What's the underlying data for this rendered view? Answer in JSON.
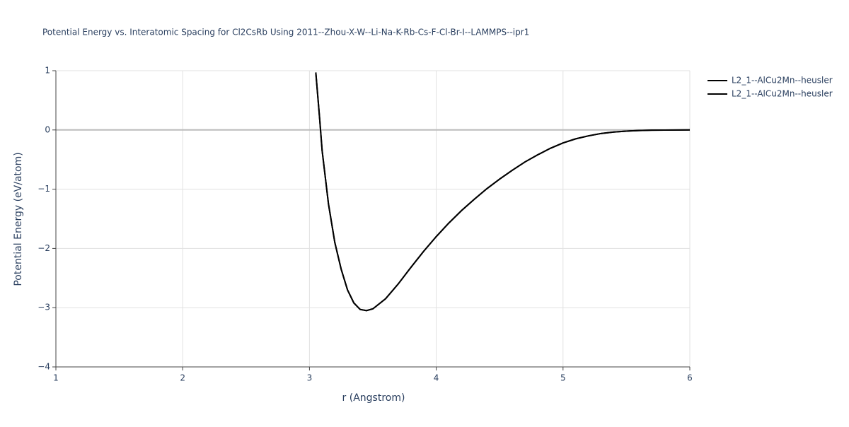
{
  "chart_data": {
    "type": "line",
    "title": "Potential Energy vs. Interatomic Spacing for Cl2CsRb Using 2011--Zhou-X-W--Li-Na-K-Rb-Cs-F-Cl-Br-I--LAMMPS--ipr1",
    "x_label": "r (Angstrom)",
    "y_label": "Potential Energy (eV/atom)",
    "x": [
      3.05,
      3.08,
      3.1,
      3.15,
      3.2,
      3.25,
      3.3,
      3.35,
      3.4,
      3.45,
      3.5,
      3.6,
      3.7,
      3.8,
      3.9,
      4.0,
      4.1,
      4.2,
      4.3,
      4.4,
      4.5,
      4.6,
      4.7,
      4.8,
      4.9,
      5.0,
      5.1,
      5.2,
      5.3,
      5.4,
      5.5,
      5.6,
      5.7,
      5.8,
      5.9,
      6.0
    ],
    "series": [
      {
        "name": "L2_1--AlCu2Mn--heusler",
        "color": "#000000",
        "values": [
          0.97,
          0.2,
          -0.35,
          -1.25,
          -1.9,
          -2.35,
          -2.7,
          -2.92,
          -3.03,
          -3.05,
          -3.02,
          -2.85,
          -2.6,
          -2.32,
          -2.05,
          -1.8,
          -1.57,
          -1.36,
          -1.17,
          -0.99,
          -0.83,
          -0.68,
          -0.54,
          -0.42,
          -0.31,
          -0.22,
          -0.15,
          -0.1,
          -0.06,
          -0.035,
          -0.02,
          -0.01,
          -0.004,
          -0.002,
          -0.001,
          0
        ]
      },
      {
        "name": "L2_1--AlCu2Mn--heusler",
        "color": "#000000",
        "values": [
          0.97,
          0.2,
          -0.35,
          -1.25,
          -1.9,
          -2.35,
          -2.7,
          -2.92,
          -3.03,
          -3.05,
          -3.02,
          -2.85,
          -2.6,
          -2.32,
          -2.05,
          -1.8,
          -1.57,
          -1.36,
          -1.17,
          -0.99,
          -0.83,
          -0.68,
          -0.54,
          -0.42,
          -0.31,
          -0.22,
          -0.15,
          -0.1,
          -0.06,
          -0.035,
          -0.02,
          -0.01,
          -0.004,
          -0.002,
          -0.001,
          0
        ]
      }
    ],
    "xlim": [
      1,
      6
    ],
    "xticks": [
      1,
      2,
      3,
      4,
      5,
      6
    ],
    "ylim": [
      -4,
      1
    ],
    "yticks": [
      {
        "value": -4,
        "label": "−4"
      },
      {
        "value": -3,
        "label": "−3"
      },
      {
        "value": -2,
        "label": "−2"
      },
      {
        "value": -1,
        "label": "−1"
      },
      0,
      1
    ],
    "grid": true,
    "legend_position": "top-right"
  }
}
